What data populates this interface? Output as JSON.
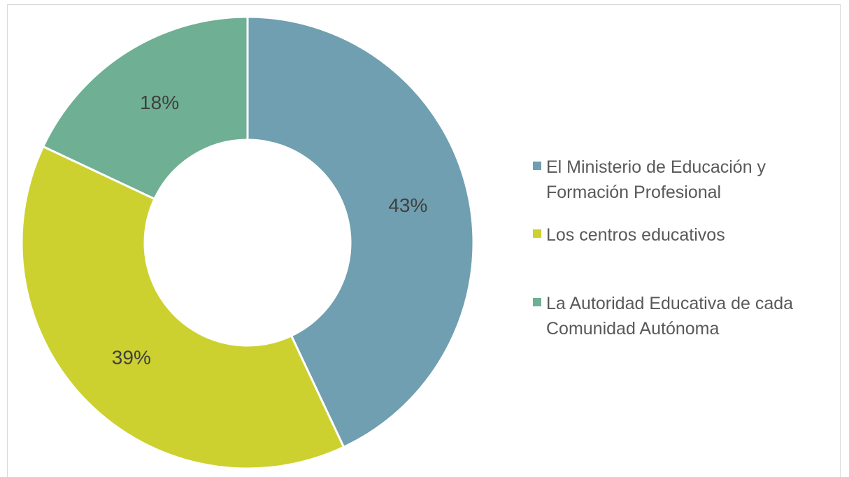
{
  "chart_data": {
    "type": "donut",
    "categories": [
      "El Ministerio de Educación y Formación Profesional",
      "Los centros educativos",
      "La Autoridad Educativa de cada Comunidad Autónoma"
    ],
    "values": [
      43,
      39,
      18
    ],
    "value_labels": [
      "43%",
      "39%",
      "18%"
    ],
    "colors": [
      "#6f9fb0",
      "#ccd12f",
      "#6faf94"
    ],
    "legend": "right"
  }
}
